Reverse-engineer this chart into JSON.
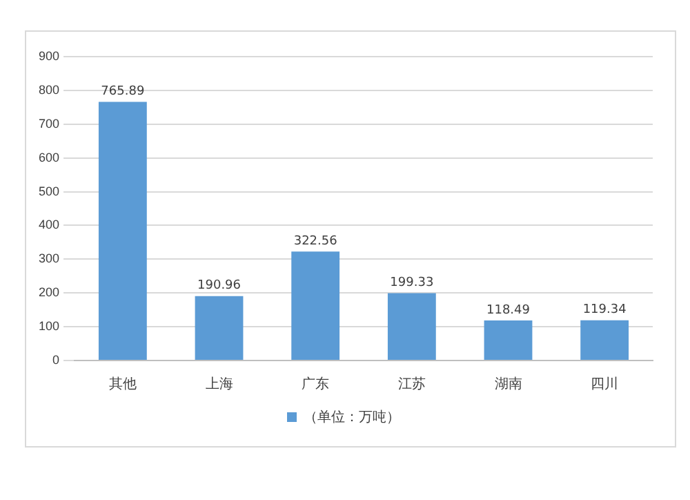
{
  "chart_data": {
    "type": "bar",
    "categories": [
      "其他",
      "上海",
      "广东",
      "江苏",
      "湖南",
      "四川"
    ],
    "series": [
      {
        "name": "（单位：万吨）",
        "color": "#5b9bd5",
        "values": [
          765.89,
          190.96,
          322.56,
          199.33,
          118.49,
          119.34
        ]
      }
    ],
    "ylim": [
      0,
      900
    ],
    "yticks": [
      0,
      100,
      200,
      300,
      400,
      500,
      600,
      700,
      800,
      900
    ],
    "grid": "y",
    "legend": "bottom",
    "data_labels": true
  }
}
